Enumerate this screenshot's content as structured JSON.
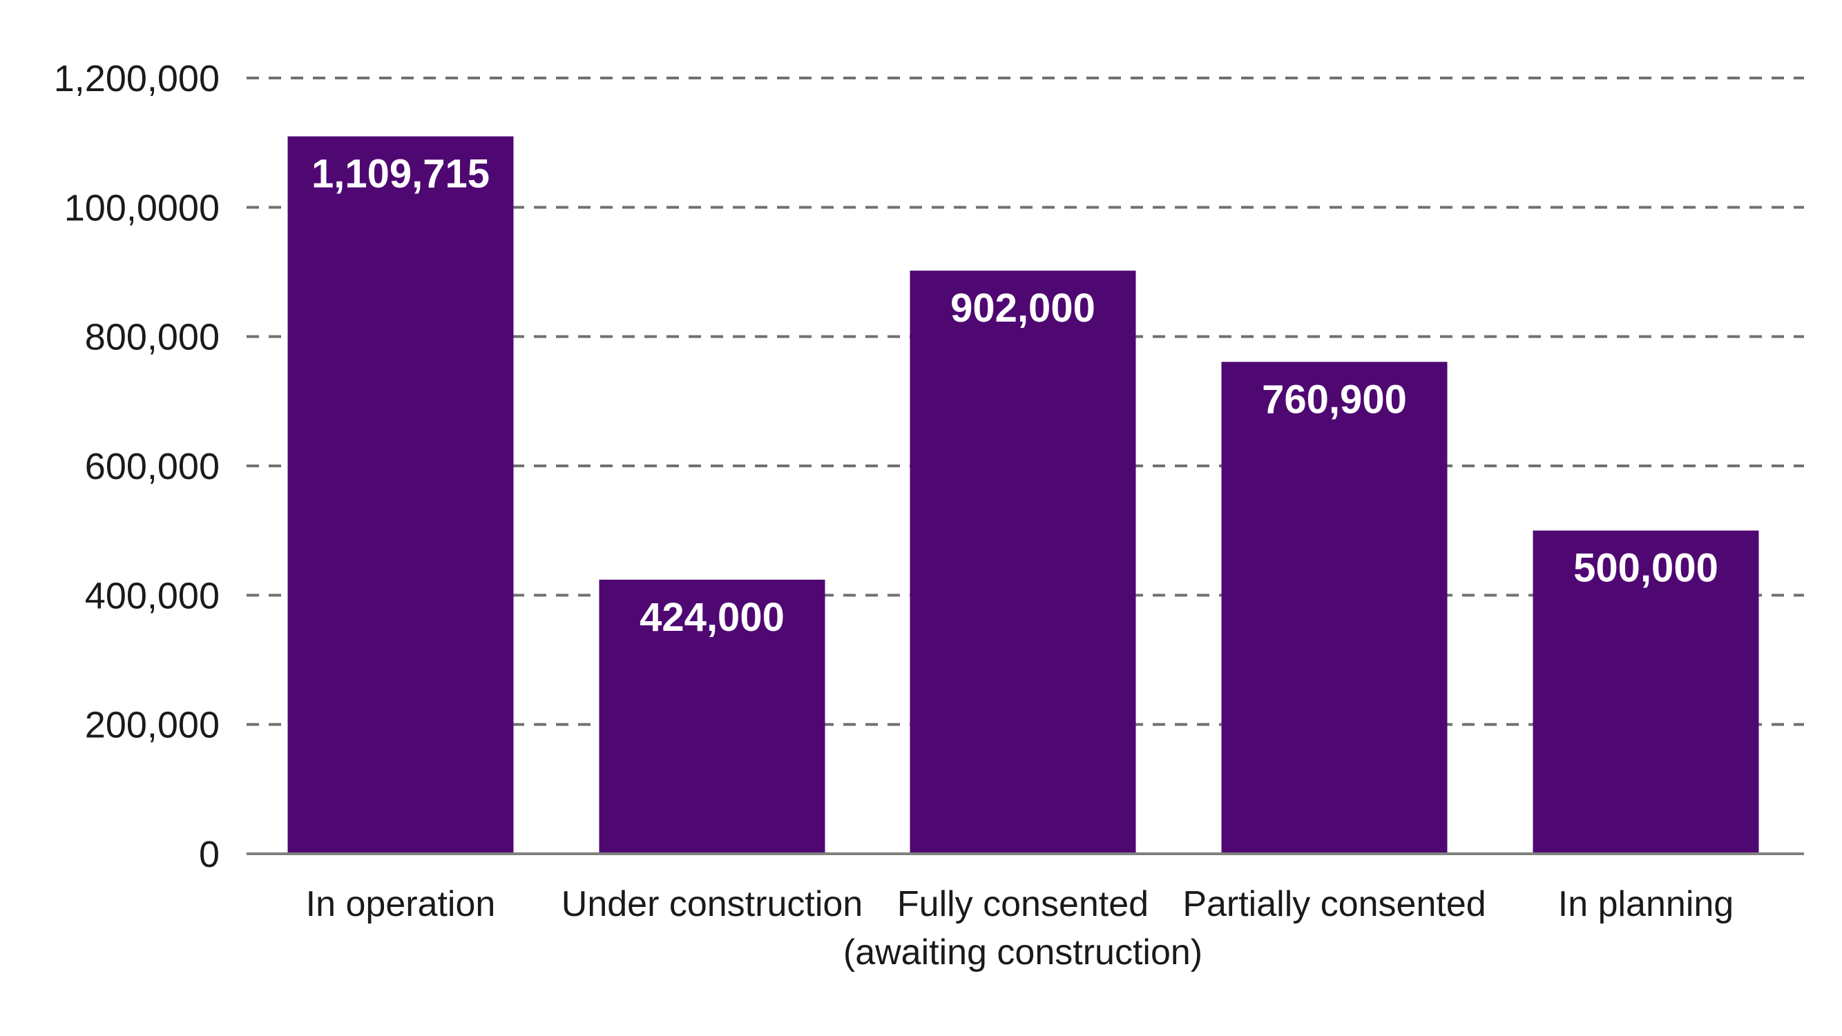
{
  "chart_data": {
    "type": "bar",
    "categories": [
      [
        "In operation"
      ],
      [
        "Under construction"
      ],
      [
        "Fully consented",
        "(awaiting construction)"
      ],
      [
        "Partially consented"
      ],
      [
        "In planning"
      ]
    ],
    "values": [
      1109715,
      424000,
      902000,
      760900,
      500000
    ],
    "data_labels": [
      "1,109,715",
      "424,000",
      "902,000",
      "760,900",
      "500,000"
    ],
    "y_ticks": [
      {
        "value": 0,
        "label": "0"
      },
      {
        "value": 200000,
        "label": "200,000"
      },
      {
        "value": 400000,
        "label": "400,000"
      },
      {
        "value": 600000,
        "label": "600,000"
      },
      {
        "value": 800000,
        "label": "800,000"
      },
      {
        "value": 1000000,
        "label": "100,0000"
      },
      {
        "value": 1200000,
        "label": "1,200,000"
      }
    ],
    "ylim": [
      0,
      1200000
    ],
    "grid": true,
    "legend": "none",
    "title": "",
    "xlabel": "",
    "ylabel": "",
    "colors": {
      "bar": "#4f0872"
    }
  }
}
